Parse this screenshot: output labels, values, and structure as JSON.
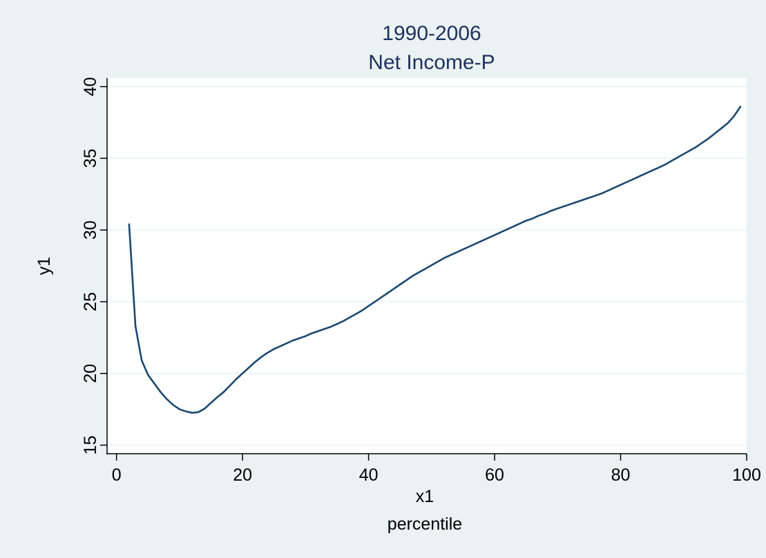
{
  "chart_data": {
    "type": "line",
    "title": "1990-2006",
    "subtitle": "Net Income-P",
    "xlabel": "x1",
    "xlabel2": "percentile",
    "ylabel": "y1",
    "xlim": [
      -1.5,
      100
    ],
    "ylim": [
      14.4,
      40.6
    ],
    "x_ticks": [
      0,
      20,
      40,
      60,
      80,
      100
    ],
    "y_ticks": [
      15,
      20,
      25,
      30,
      35,
      40
    ],
    "grid": true,
    "colors": {
      "background": "#eaf2f3",
      "plot_background": "#ffffff",
      "grid": "#eaf2f3",
      "line": "#1a476f",
      "title": "#1e3160",
      "text": "#000000"
    },
    "series": [
      {
        "x": [
          2,
          3,
          4,
          5,
          6,
          7,
          8,
          9,
          10,
          11,
          12,
          13,
          14,
          15,
          16,
          17,
          18,
          19,
          20,
          21,
          22,
          23,
          24,
          25,
          26,
          27,
          28,
          29,
          30,
          31,
          32,
          33,
          34,
          35,
          36,
          37,
          38,
          39,
          40,
          41,
          42,
          43,
          44,
          45,
          46,
          47,
          48,
          49,
          50,
          51,
          52,
          53,
          54,
          55,
          56,
          57,
          58,
          59,
          60,
          61,
          62,
          63,
          64,
          65,
          66,
          67,
          68,
          69,
          70,
          71,
          72,
          73,
          74,
          75,
          76,
          77,
          78,
          79,
          80,
          81,
          82,
          83,
          84,
          85,
          86,
          87,
          88,
          89,
          90,
          91,
          92,
          93,
          94,
          95,
          96,
          97,
          98,
          99
        ],
        "values": [
          30.4,
          23.3,
          20.9,
          19.9,
          19.3,
          18.7,
          18.2,
          17.8,
          17.5,
          17.35,
          17.25,
          17.3,
          17.55,
          17.95,
          18.35,
          18.7,
          19.15,
          19.6,
          20.0,
          20.4,
          20.8,
          21.15,
          21.45,
          21.7,
          21.9,
          22.1,
          22.3,
          22.45,
          22.6,
          22.8,
          22.95,
          23.1,
          23.25,
          23.45,
          23.65,
          23.9,
          24.15,
          24.4,
          24.7,
          25.0,
          25.3,
          25.6,
          25.9,
          26.2,
          26.5,
          26.8,
          27.05,
          27.3,
          27.55,
          27.8,
          28.05,
          28.25,
          28.45,
          28.65,
          28.85,
          29.05,
          29.25,
          29.45,
          29.65,
          29.85,
          30.05,
          30.25,
          30.45,
          30.65,
          30.8,
          31.0,
          31.15,
          31.35,
          31.5,
          31.65,
          31.8,
          31.95,
          32.1,
          32.25,
          32.4,
          32.55,
          32.75,
          32.95,
          33.15,
          33.35,
          33.55,
          33.75,
          33.95,
          34.15,
          34.35,
          34.55,
          34.8,
          35.05,
          35.3,
          35.55,
          35.8,
          36.1,
          36.4,
          36.75,
          37.1,
          37.45,
          37.95,
          38.6
        ]
      }
    ]
  }
}
